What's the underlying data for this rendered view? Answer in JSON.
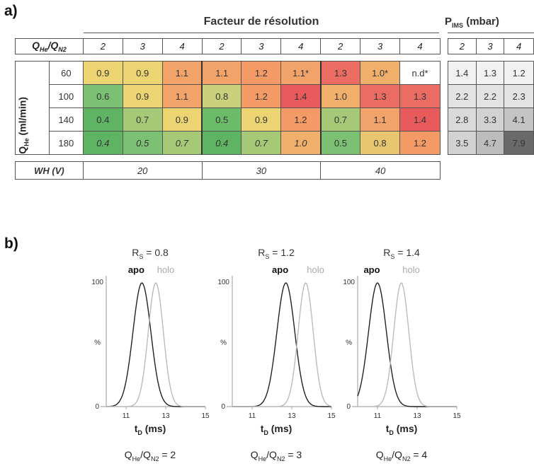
{
  "panel_a": {
    "label": "a)",
    "header_title": "Facteur de résolution",
    "pims_title": "P",
    "pims_sub": "IMS",
    "pims_unit": " (mbar)",
    "ratio_head": "Q",
    "ratio_head_sub1": "He",
    "ratio_head_mid": "/Q",
    "ratio_head_sub2": "N2",
    "ratio_values": [
      "2",
      "3",
      "4",
      "2",
      "3",
      "4",
      "2",
      "3",
      "4"
    ],
    "pims_ratios": [
      "2",
      "3",
      "4"
    ],
    "qhe_label": "Q",
    "qhe_label_sub": "He",
    "qhe_label_unit": " (ml/min)",
    "rows": [
      {
        "flow": "60",
        "values": [
          "0.9",
          "0.9",
          "1.1",
          "1.1",
          "1.2",
          "1.1*",
          "1.3",
          "1.0*",
          "n.d*"
        ],
        "italic": false,
        "pims": [
          "1.4",
          "1.3",
          "1.2"
        ]
      },
      {
        "flow": "100",
        "values": [
          "0.6",
          "0.9",
          "1.1",
          "0.8",
          "1.2",
          "1.4",
          "1.0",
          "1.3",
          "1.3"
        ],
        "italic": false,
        "pims": [
          "2.2",
          "2.2",
          "2.3"
        ]
      },
      {
        "flow": "140",
        "values": [
          "0.4",
          "0.7",
          "0.9",
          "0.5",
          "0.9",
          "1.2",
          "0.7",
          "1.1",
          "1.4"
        ],
        "italic": false,
        "pims": [
          "2.8",
          "3.3",
          "4.1"
        ]
      },
      {
        "flow": "180",
        "values": [
          "0.4",
          "0.5",
          "0.7",
          "0.4",
          "0.7",
          "1.0",
          "0.5",
          "0.8",
          "1.2"
        ],
        "italic_count": 6,
        "pims": [
          "3.5",
          "4.7",
          "7.9"
        ]
      }
    ],
    "colors": [
      [
        "#ecd472",
        "#ecd472",
        "#f2a36a",
        "#f2a36a",
        "#f39a67",
        "#f2a36a",
        "#ea6c62",
        "#f0b06c",
        "#ffffff"
      ],
      [
        "#7cc073",
        "#ecd472",
        "#f2a36a",
        "#c9d17c",
        "#f39a67",
        "#e85a5c",
        "#f0b06c",
        "#ea6c62",
        "#ea6c62"
      ],
      [
        "#5fb463",
        "#a6c978",
        "#ecd472",
        "#6cbb68",
        "#ecd472",
        "#f39a67",
        "#a6c978",
        "#f2a36a",
        "#e85a5c"
      ],
      [
        "#5fb463",
        "#7cc073",
        "#a6c978",
        "#5fb463",
        "#a6c978",
        "#f0b06c",
        "#7cc073",
        "#e8c670",
        "#f39a67"
      ]
    ],
    "pims_colors": [
      [
        "#f1f1f1",
        "#f1f1f1",
        "#f1f1f1"
      ],
      [
        "#e3e3e3",
        "#e3e3e3",
        "#e3e3e3"
      ],
      [
        "#dadada",
        "#d2d2d2",
        "#c4c4c4"
      ],
      [
        "#d2d2d2",
        "#bdbdbd",
        "#6a6a6a"
      ]
    ],
    "wh_label": "WH (V)",
    "wh_values": [
      "20",
      "30",
      "40"
    ]
  },
  "panel_b": {
    "label": "b)",
    "peak_apo": "apo",
    "peak_holo": "holo",
    "y_top_label": "100",
    "y_mid_label": "%",
    "y_zero_label": "0",
    "xlabel_main": "t",
    "xlabel_sub": "D",
    "xlabel_unit": " (ms)",
    "x_ticks": [
      "11",
      "13",
      "15"
    ],
    "plots": [
      {
        "rs": "R",
        "rs_sub": "S",
        "rs_val": " = 0.8",
        "ratio": "Q",
        "ratio_s1": "He",
        "ratio_mid": "/Q",
        "ratio_s2": "N2",
        "ratio_val": " = 2"
      },
      {
        "rs": "R",
        "rs_sub": "S",
        "rs_val": " = 1.2",
        "ratio": "Q",
        "ratio_s1": "He",
        "ratio_mid": "/Q",
        "ratio_s2": "N2",
        "ratio_val": " = 3"
      },
      {
        "rs": "R",
        "rs_sub": "S",
        "rs_val": " = 1.4",
        "ratio": "Q",
        "ratio_s1": "He",
        "ratio_mid": "/Q",
        "ratio_s2": "N2",
        "ratio_val": " = 4"
      }
    ]
  },
  "chart_data": [
    {
      "type": "line",
      "title": "R_S = 0.8",
      "xlabel": "t_D (ms)",
      "ylabel": "%",
      "xlim": [
        10,
        15
      ],
      "ylim": [
        0,
        100
      ],
      "series": [
        {
          "name": "apo",
          "peak_x": 11.8,
          "peak_y": 100
        },
        {
          "name": "holo",
          "peak_x": 12.5,
          "peak_y": 100
        }
      ],
      "footer": "Q_He/Q_N2 = 2"
    },
    {
      "type": "line",
      "title": "R_S = 1.2",
      "xlabel": "t_D (ms)",
      "ylabel": "%",
      "xlim": [
        10,
        15
      ],
      "ylim": [
        0,
        100
      ],
      "series": [
        {
          "name": "apo",
          "peak_x": 12.7,
          "peak_y": 100
        },
        {
          "name": "holo",
          "peak_x": 13.7,
          "peak_y": 100
        }
      ],
      "footer": "Q_He/Q_N2 = 3"
    },
    {
      "type": "line",
      "title": "R_S = 1.4",
      "xlabel": "t_D (ms)",
      "ylabel": "%",
      "xlim": [
        10,
        15
      ],
      "ylim": [
        0,
        100
      ],
      "series": [
        {
          "name": "apo",
          "peak_x": 11.0,
          "peak_y": 100
        },
        {
          "name": "holo",
          "peak_x": 12.2,
          "peak_y": 100
        }
      ],
      "footer": "Q_He/Q_N2 = 4"
    }
  ]
}
